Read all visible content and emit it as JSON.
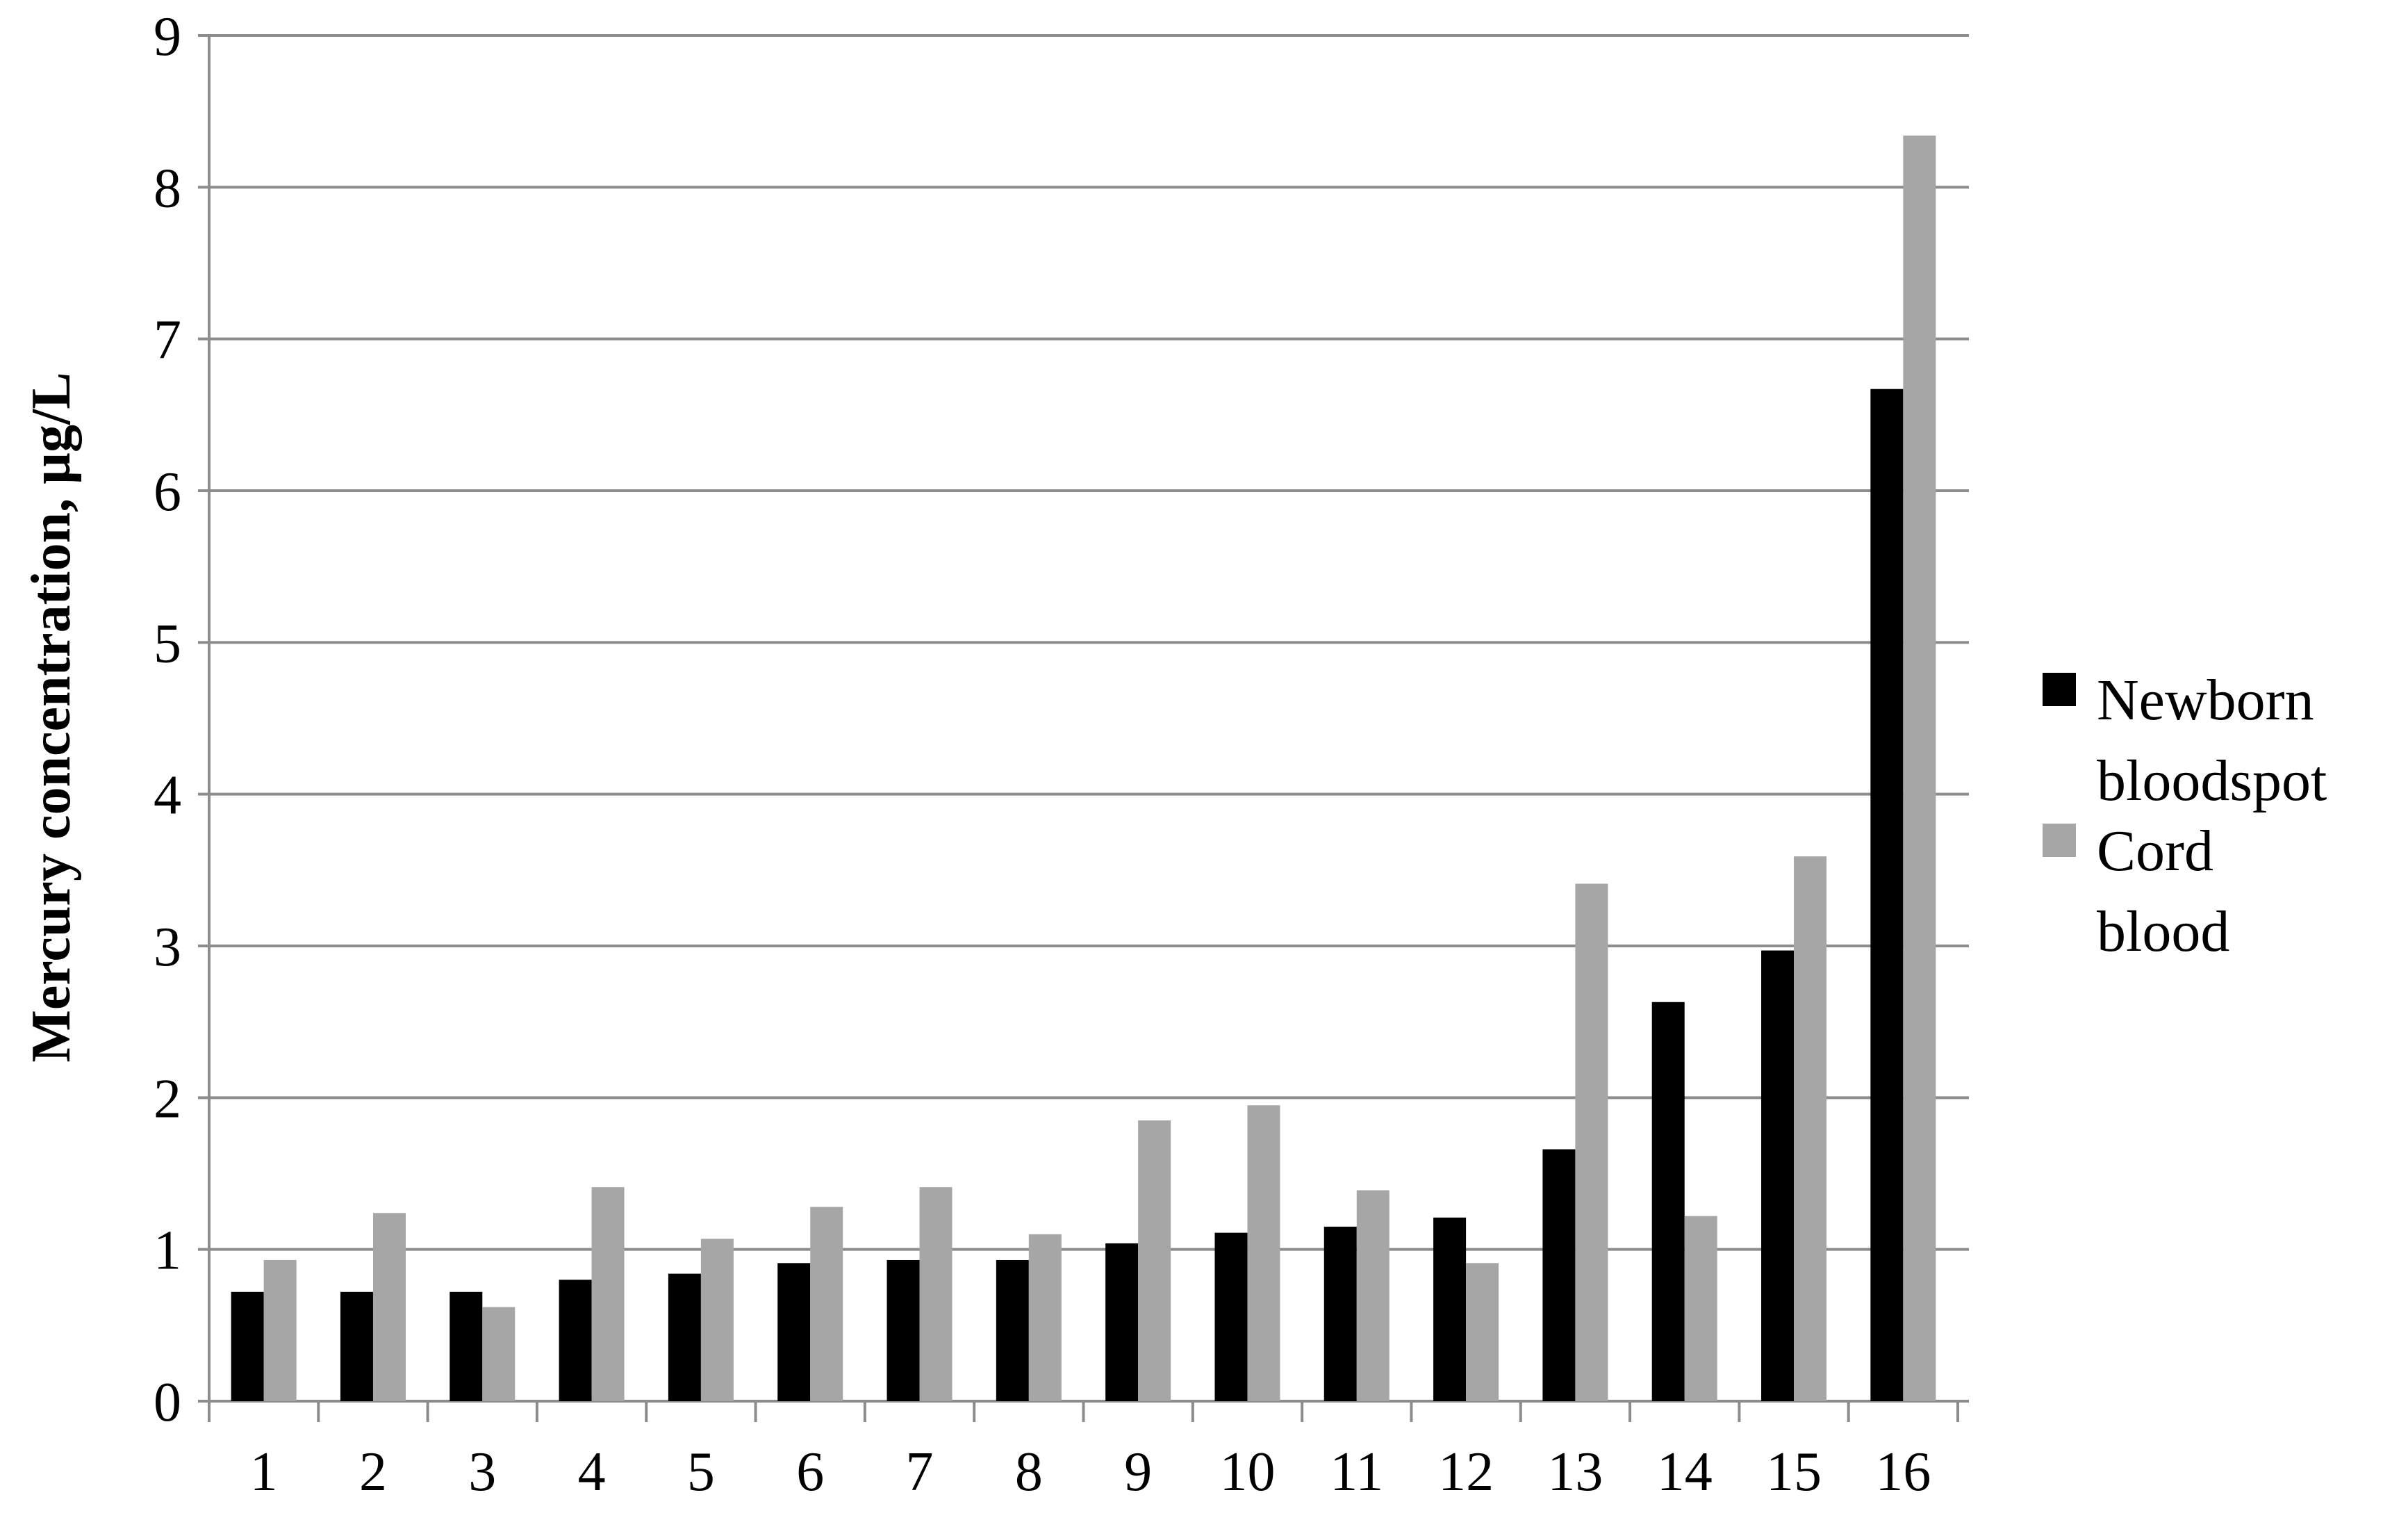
{
  "chart_data": {
    "type": "bar",
    "y_label": "Mercury concentration, µg/L",
    "categories": [
      "1",
      "2",
      "3",
      "4",
      "5",
      "6",
      "7",
      "8",
      "9",
      "10",
      "11",
      "12",
      "13",
      "14",
      "15",
      "16"
    ],
    "series": [
      {
        "name": "Newborn bloodspot",
        "color": "#000000",
        "values": [
          0.72,
          0.72,
          0.72,
          0.8,
          0.84,
          0.91,
          0.93,
          0.93,
          1.04,
          1.11,
          1.15,
          1.21,
          1.66,
          2.63,
          2.97,
          6.67
        ]
      },
      {
        "name": "Cord blood",
        "color": "#a6a6a6",
        "values": [
          0.93,
          1.24,
          0.62,
          1.41,
          1.07,
          1.28,
          1.41,
          1.1,
          1.85,
          1.95,
          1.39,
          0.91,
          3.41,
          1.22,
          3.59,
          8.34
        ]
      }
    ],
    "ylim": [
      0,
      9
    ],
    "yticks": [
      0,
      1,
      2,
      3,
      4,
      5,
      6,
      7,
      8,
      9
    ],
    "grid": true
  }
}
